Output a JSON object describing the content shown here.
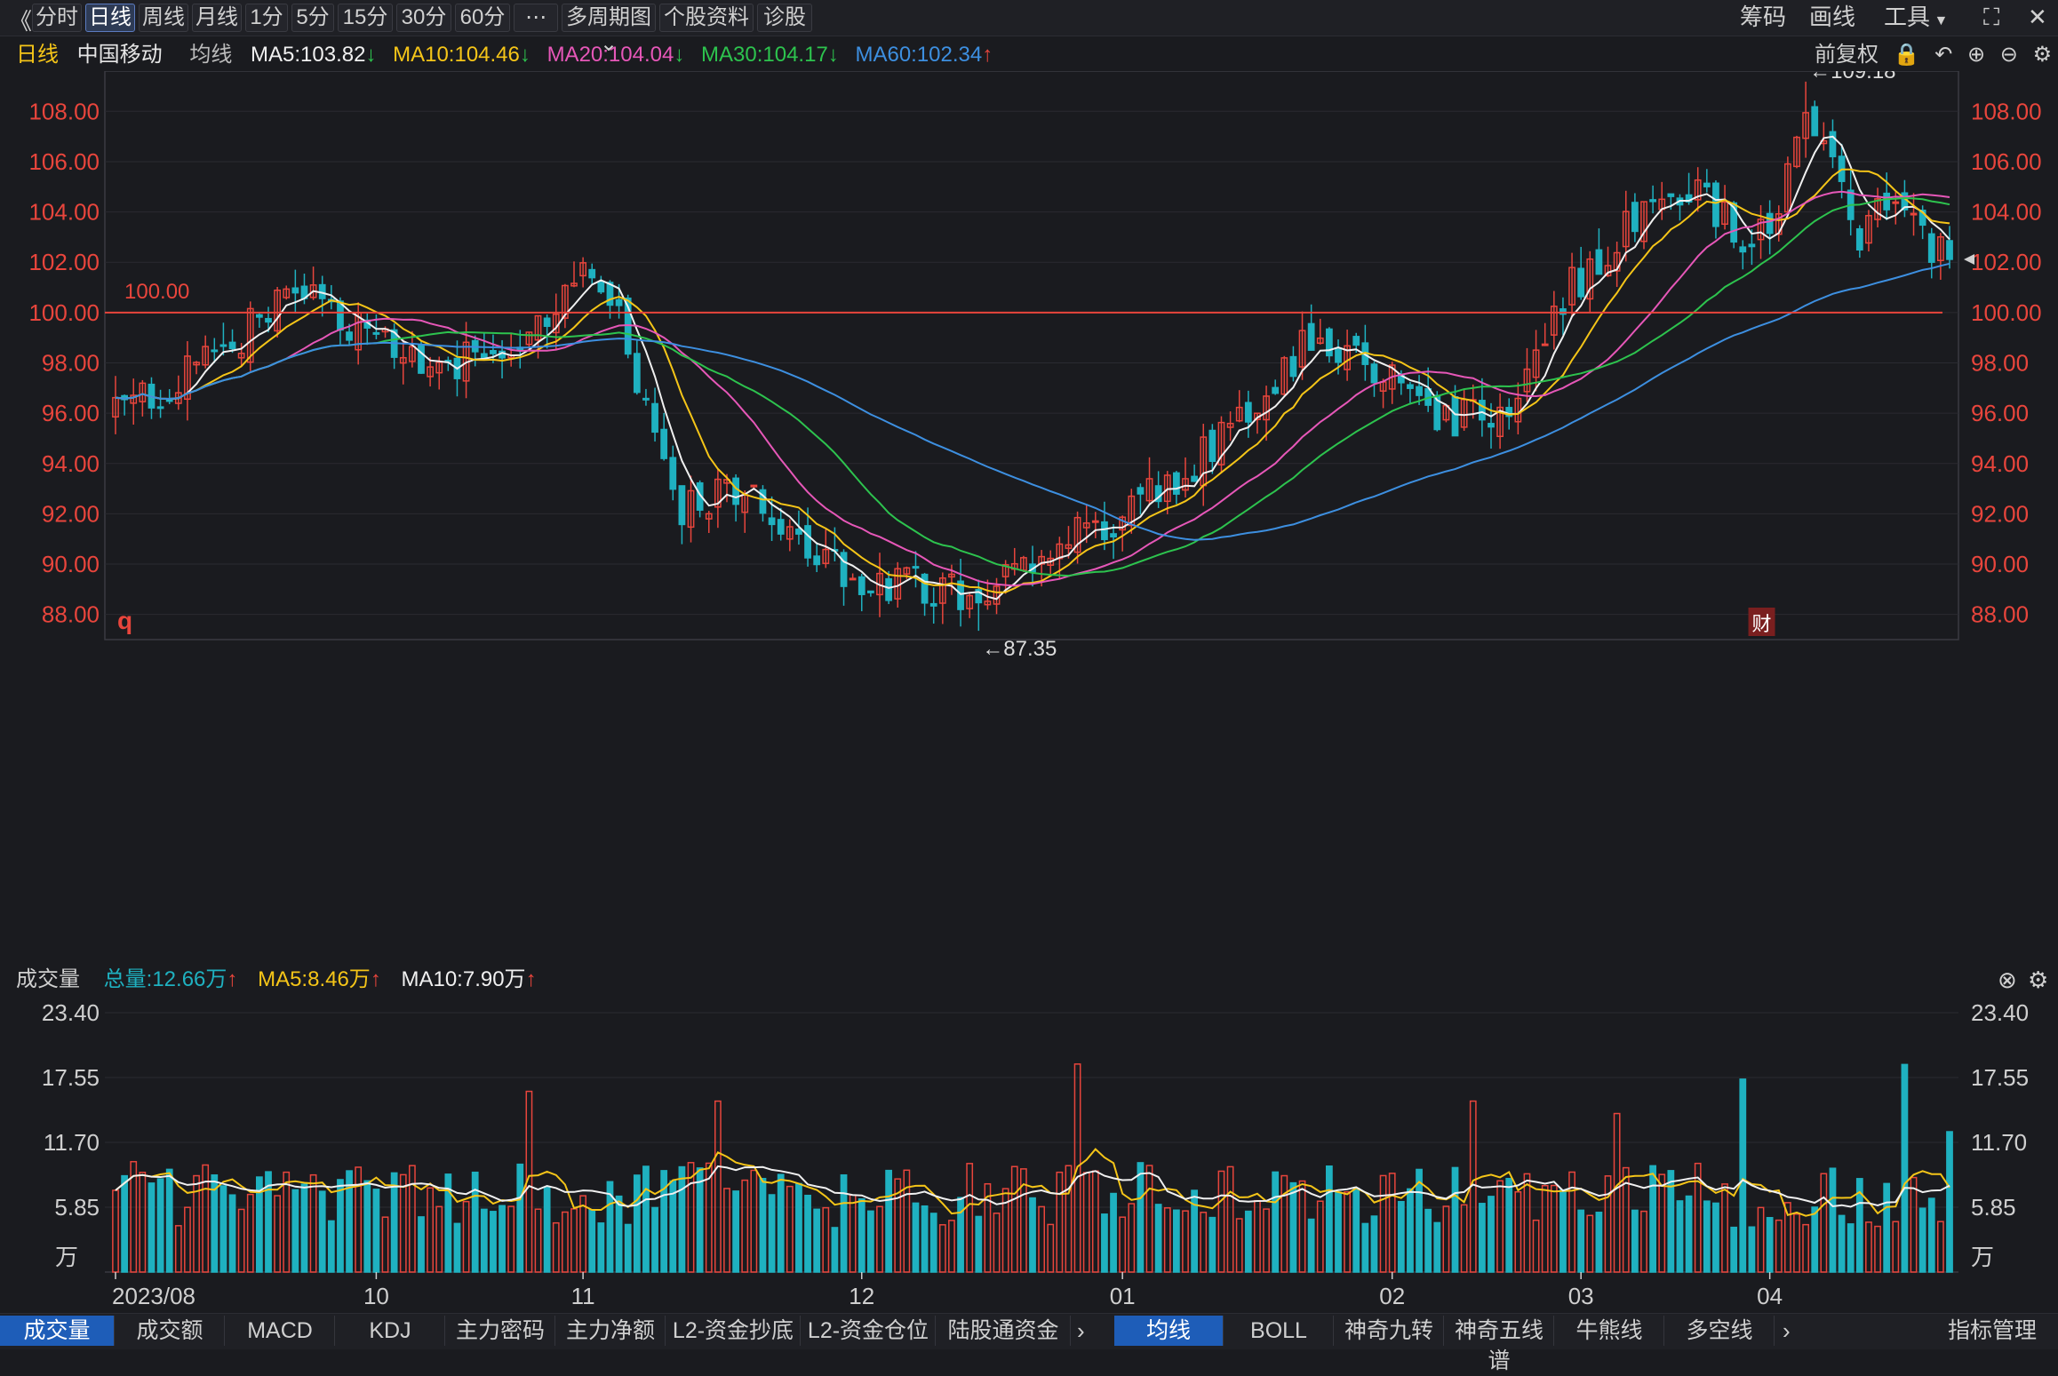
{
  "toolbar": {
    "back": "《",
    "tabs": [
      "分时",
      "日线",
      "周线",
      "月线",
      "1分",
      "5分",
      "15分",
      "30分",
      "60分",
      "⋯",
      "多周期图",
      "个股资料",
      "诊股"
    ],
    "active_tab": "日线",
    "right": [
      "筹码",
      "画线",
      "工具"
    ]
  },
  "legend": {
    "period": "日线",
    "name": "中国移动",
    "ma_label": "均线",
    "ma5": "MA5:103.82",
    "ma10": "MA10:104.46",
    "ma20": "MA20:104.04",
    "ma30": "MA30:104.17",
    "ma60": "MA60:102.34",
    "adjust": "前复权"
  },
  "colors": {
    "up": "#e8453c",
    "down": "#1fb1c0",
    "ma5": "#f0f0f0",
    "ma10": "#f5c518",
    "ma20": "#e657b8",
    "ma30": "#2dc34e",
    "ma60": "#3d8fe0",
    "grid": "#2a2b31",
    "axis_text_price": "#e8453c",
    "axis_text_vol": "#cfcfcf"
  },
  "volume_legend": {
    "label": "成交量",
    "total": "总量:12.66万",
    "ma5": "MA5:8.46万",
    "ma10": "MA10:7.90万",
    "unit": "万"
  },
  "annotations": {
    "high": "←109.18",
    "low": "←87.35",
    "ref_line": "100.00",
    "q_marker": "q",
    "cai_marker": "财"
  },
  "bottom_tabs_left": [
    "成交量",
    "成交额",
    "MACD",
    "KDJ",
    "主力密码",
    "主力净额",
    "L2-资金抄底",
    "L2-资金仓位",
    "陆股通资金"
  ],
  "bottom_tabs_right": [
    "均线",
    "BOLL",
    "神奇九转",
    "神奇五线谱",
    "牛熊线",
    "多空线"
  ],
  "bottom_right": "指标管理",
  "chart_data": [
    {
      "type": "candlestick",
      "title": "",
      "x_ticks": [
        "2023/08",
        "10",
        "11",
        "12",
        "01",
        "02",
        "03",
        "04"
      ],
      "ylim": [
        87.0,
        109.6
      ],
      "y_ticks": [
        "108.00",
        "106.00",
        "104.00",
        "102.00",
        "100.00",
        "98.00",
        "96.00",
        "94.00",
        "92.00",
        "90.00",
        "88.00"
      ],
      "high": 109.18,
      "low": 87.35,
      "ref_line": 100.0,
      "series": [
        {
          "name": "MA5",
          "last": 103.82
        },
        {
          "name": "MA10",
          "last": 104.46
        },
        {
          "name": "MA20",
          "last": 104.04
        },
        {
          "name": "MA30",
          "last": 104.17
        },
        {
          "name": "MA60",
          "last": 102.34
        }
      ]
    },
    {
      "type": "bar",
      "title": "",
      "ylim": [
        0,
        23.4
      ],
      "y_ticks": [
        "23.40",
        "17.55",
        "11.70",
        "5.85"
      ],
      "unit": "万",
      "last_total": 12.66
    }
  ]
}
